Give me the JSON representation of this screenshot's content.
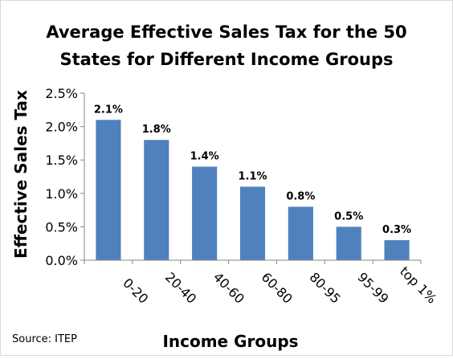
{
  "chart_data": {
    "type": "bar",
    "title_lines": [
      "Average Effective Sales Tax for the 50",
      "States for Different Income Groups"
    ],
    "xlabel": "Income Groups",
    "ylabel": "Effective Sales Tax",
    "categories": [
      "0-20",
      "20-40",
      "40-60",
      "60-80",
      "80-95",
      "95-99",
      "top 1%"
    ],
    "values": [
      2.1,
      1.8,
      1.4,
      1.1,
      0.8,
      0.5,
      0.3
    ],
    "data_labels": [
      "2.1%",
      "1.8%",
      "1.4%",
      "1.1%",
      "0.8%",
      "0.5%",
      "0.3%"
    ],
    "y_ticks": [
      "0.0%",
      "0.5%",
      "1.0%",
      "1.5%",
      "2.0%",
      "2.5%"
    ],
    "ylim": [
      0,
      2.5
    ],
    "bar_color": "#4f81bd",
    "grid": false,
    "legend": "none"
  },
  "source": "Source: ITEP"
}
